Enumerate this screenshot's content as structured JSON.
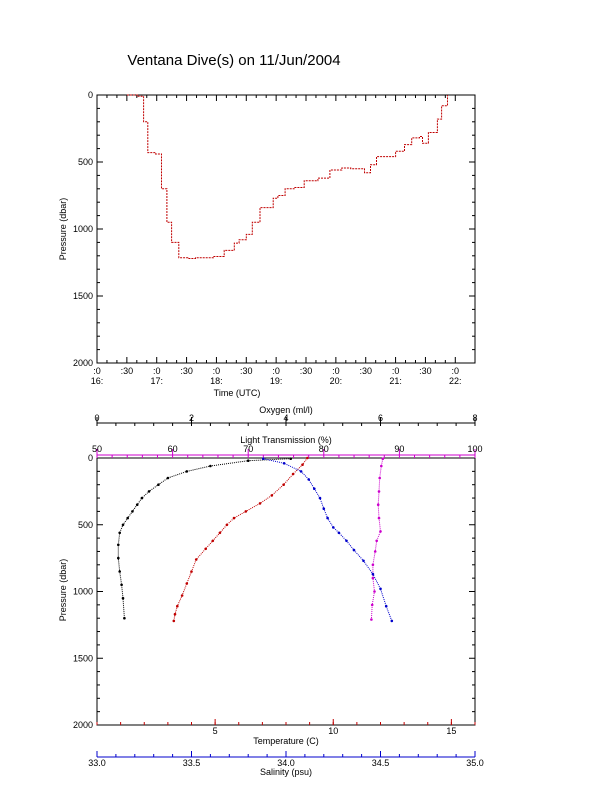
{
  "chart_data": [
    {
      "type": "line",
      "title": "Ventana Dive(s) on 11/Jun/2004",
      "xlabel": "Time (UTC)",
      "ylabel": "Pressure (dbar)",
      "x_tick_labels": [
        [
          ":0",
          "16:"
        ],
        [
          ":30",
          ""
        ],
        [
          ":0",
          "17:"
        ],
        [
          ":30",
          ""
        ],
        [
          ":0",
          "18:"
        ],
        [
          ":30",
          ""
        ],
        [
          ":0",
          "19:"
        ],
        [
          ":30",
          ""
        ],
        [
          ":0",
          "20:"
        ],
        [
          ":30",
          ""
        ],
        [
          ":0",
          "21:"
        ],
        [
          ":30",
          ""
        ],
        [
          ":0",
          "22:"
        ]
      ],
      "xlim_hours": [
        16.0,
        22.33
      ],
      "y_ticks": [
        0,
        500,
        1000,
        1500,
        2000
      ],
      "ylim": [
        2000,
        0
      ],
      "series": [
        {
          "color": "#c00000",
          "x": [
            16.5,
            16.68,
            16.78,
            16.85,
            16.98,
            17.08,
            17.17,
            17.25,
            17.37,
            17.52,
            17.65,
            17.95,
            18.13,
            18.3,
            18.38,
            18.5,
            18.6,
            18.73,
            18.95,
            19.03,
            19.15,
            19.3,
            19.47,
            19.7,
            19.9,
            20.1,
            20.25,
            20.48,
            20.58,
            20.68,
            21.0,
            21.15,
            21.27,
            21.4,
            21.45,
            21.55,
            21.7,
            21.77,
            21.87
          ],
          "y": [
            0,
            10,
            200,
            430,
            440,
            700,
            950,
            1100,
            1215,
            1220,
            1215,
            1205,
            1160,
            1105,
            1080,
            1040,
            950,
            840,
            770,
            750,
            700,
            690,
            640,
            620,
            560,
            545,
            550,
            580,
            520,
            460,
            420,
            370,
            320,
            310,
            360,
            280,
            180,
            80,
            0
          ]
        }
      ]
    },
    {
      "type": "scatter",
      "ylabel": "Pressure (dbar)",
      "y_ticks": [
        0,
        500,
        1000,
        1500,
        2000
      ],
      "ylim": [
        2000,
        0
      ],
      "axes": [
        {
          "label": "Oxygen (ml/l)",
          "position": "top",
          "color": "#000000",
          "range": [
            0,
            8
          ],
          "ticks": [
            0,
            2,
            4,
            6,
            8
          ]
        },
        {
          "label": "Light Transmission (%)",
          "position": "top",
          "color": "#cc00cc",
          "range": [
            50,
            100
          ],
          "ticks": [
            50,
            60,
            70,
            80,
            90,
            100
          ]
        },
        {
          "label": "Temperature (C)",
          "position": "bottom",
          "color": "#c00000",
          "range": [
            0,
            16
          ],
          "ticks": [
            5,
            10,
            15
          ]
        },
        {
          "label": "Salinity (psu)",
          "position": "bottom",
          "color": "#0000cc",
          "range": [
            33.0,
            35.0
          ],
          "ticks": [
            "33.0",
            "33.5",
            "34.0",
            "34.5",
            "35.0"
          ]
        }
      ],
      "series": [
        {
          "color": "#000000",
          "x": [
            4.1,
            3.2,
            2.4,
            1.9,
            1.5,
            1.3,
            1.1,
            0.95,
            0.85,
            0.75,
            0.65,
            0.55,
            0.48,
            0.45,
            0.45,
            0.48,
            0.52,
            0.55,
            0.58
          ],
          "y": [
            5,
            20,
            60,
            100,
            150,
            200,
            250,
            300,
            350,
            400,
            450,
            500,
            560,
            650,
            750,
            850,
            950,
            1050,
            1200
          ]
        },
        {
          "color": "#cc00cc",
          "x": [
            87.8,
            87.6,
            87.4,
            87.3,
            87.2,
            87.3,
            87.5,
            87.0,
            86.8,
            86.5,
            86.5,
            86.7,
            86.4,
            86.3
          ],
          "y": [
            5,
            60,
            150,
            250,
            350,
            450,
            550,
            620,
            700,
            800,
            900,
            1000,
            1100,
            1210
          ]
        },
        {
          "color": "#c00000",
          "x": [
            8.9,
            8.7,
            8.3,
            7.9,
            7.4,
            6.9,
            6.3,
            5.8,
            5.5,
            5.2,
            4.9,
            4.6,
            4.2,
            4.0,
            3.8,
            3.6,
            3.4,
            3.3,
            3.25
          ],
          "y": [
            0,
            50,
            120,
            200,
            280,
            340,
            400,
            450,
            500,
            560,
            620,
            680,
            760,
            850,
            940,
            1030,
            1110,
            1170,
            1220
          ]
        },
        {
          "color": "#0000cc",
          "x": [
            33.88,
            33.99,
            34.08,
            34.12,
            34.15,
            34.18,
            34.2,
            34.22,
            34.25,
            34.28,
            34.32,
            34.36,
            34.41,
            34.46,
            34.5,
            34.53,
            34.56
          ],
          "y": [
            5,
            40,
            100,
            160,
            230,
            300,
            380,
            450,
            520,
            560,
            620,
            690,
            770,
            870,
            980,
            1110,
            1220
          ]
        }
      ]
    }
  ]
}
